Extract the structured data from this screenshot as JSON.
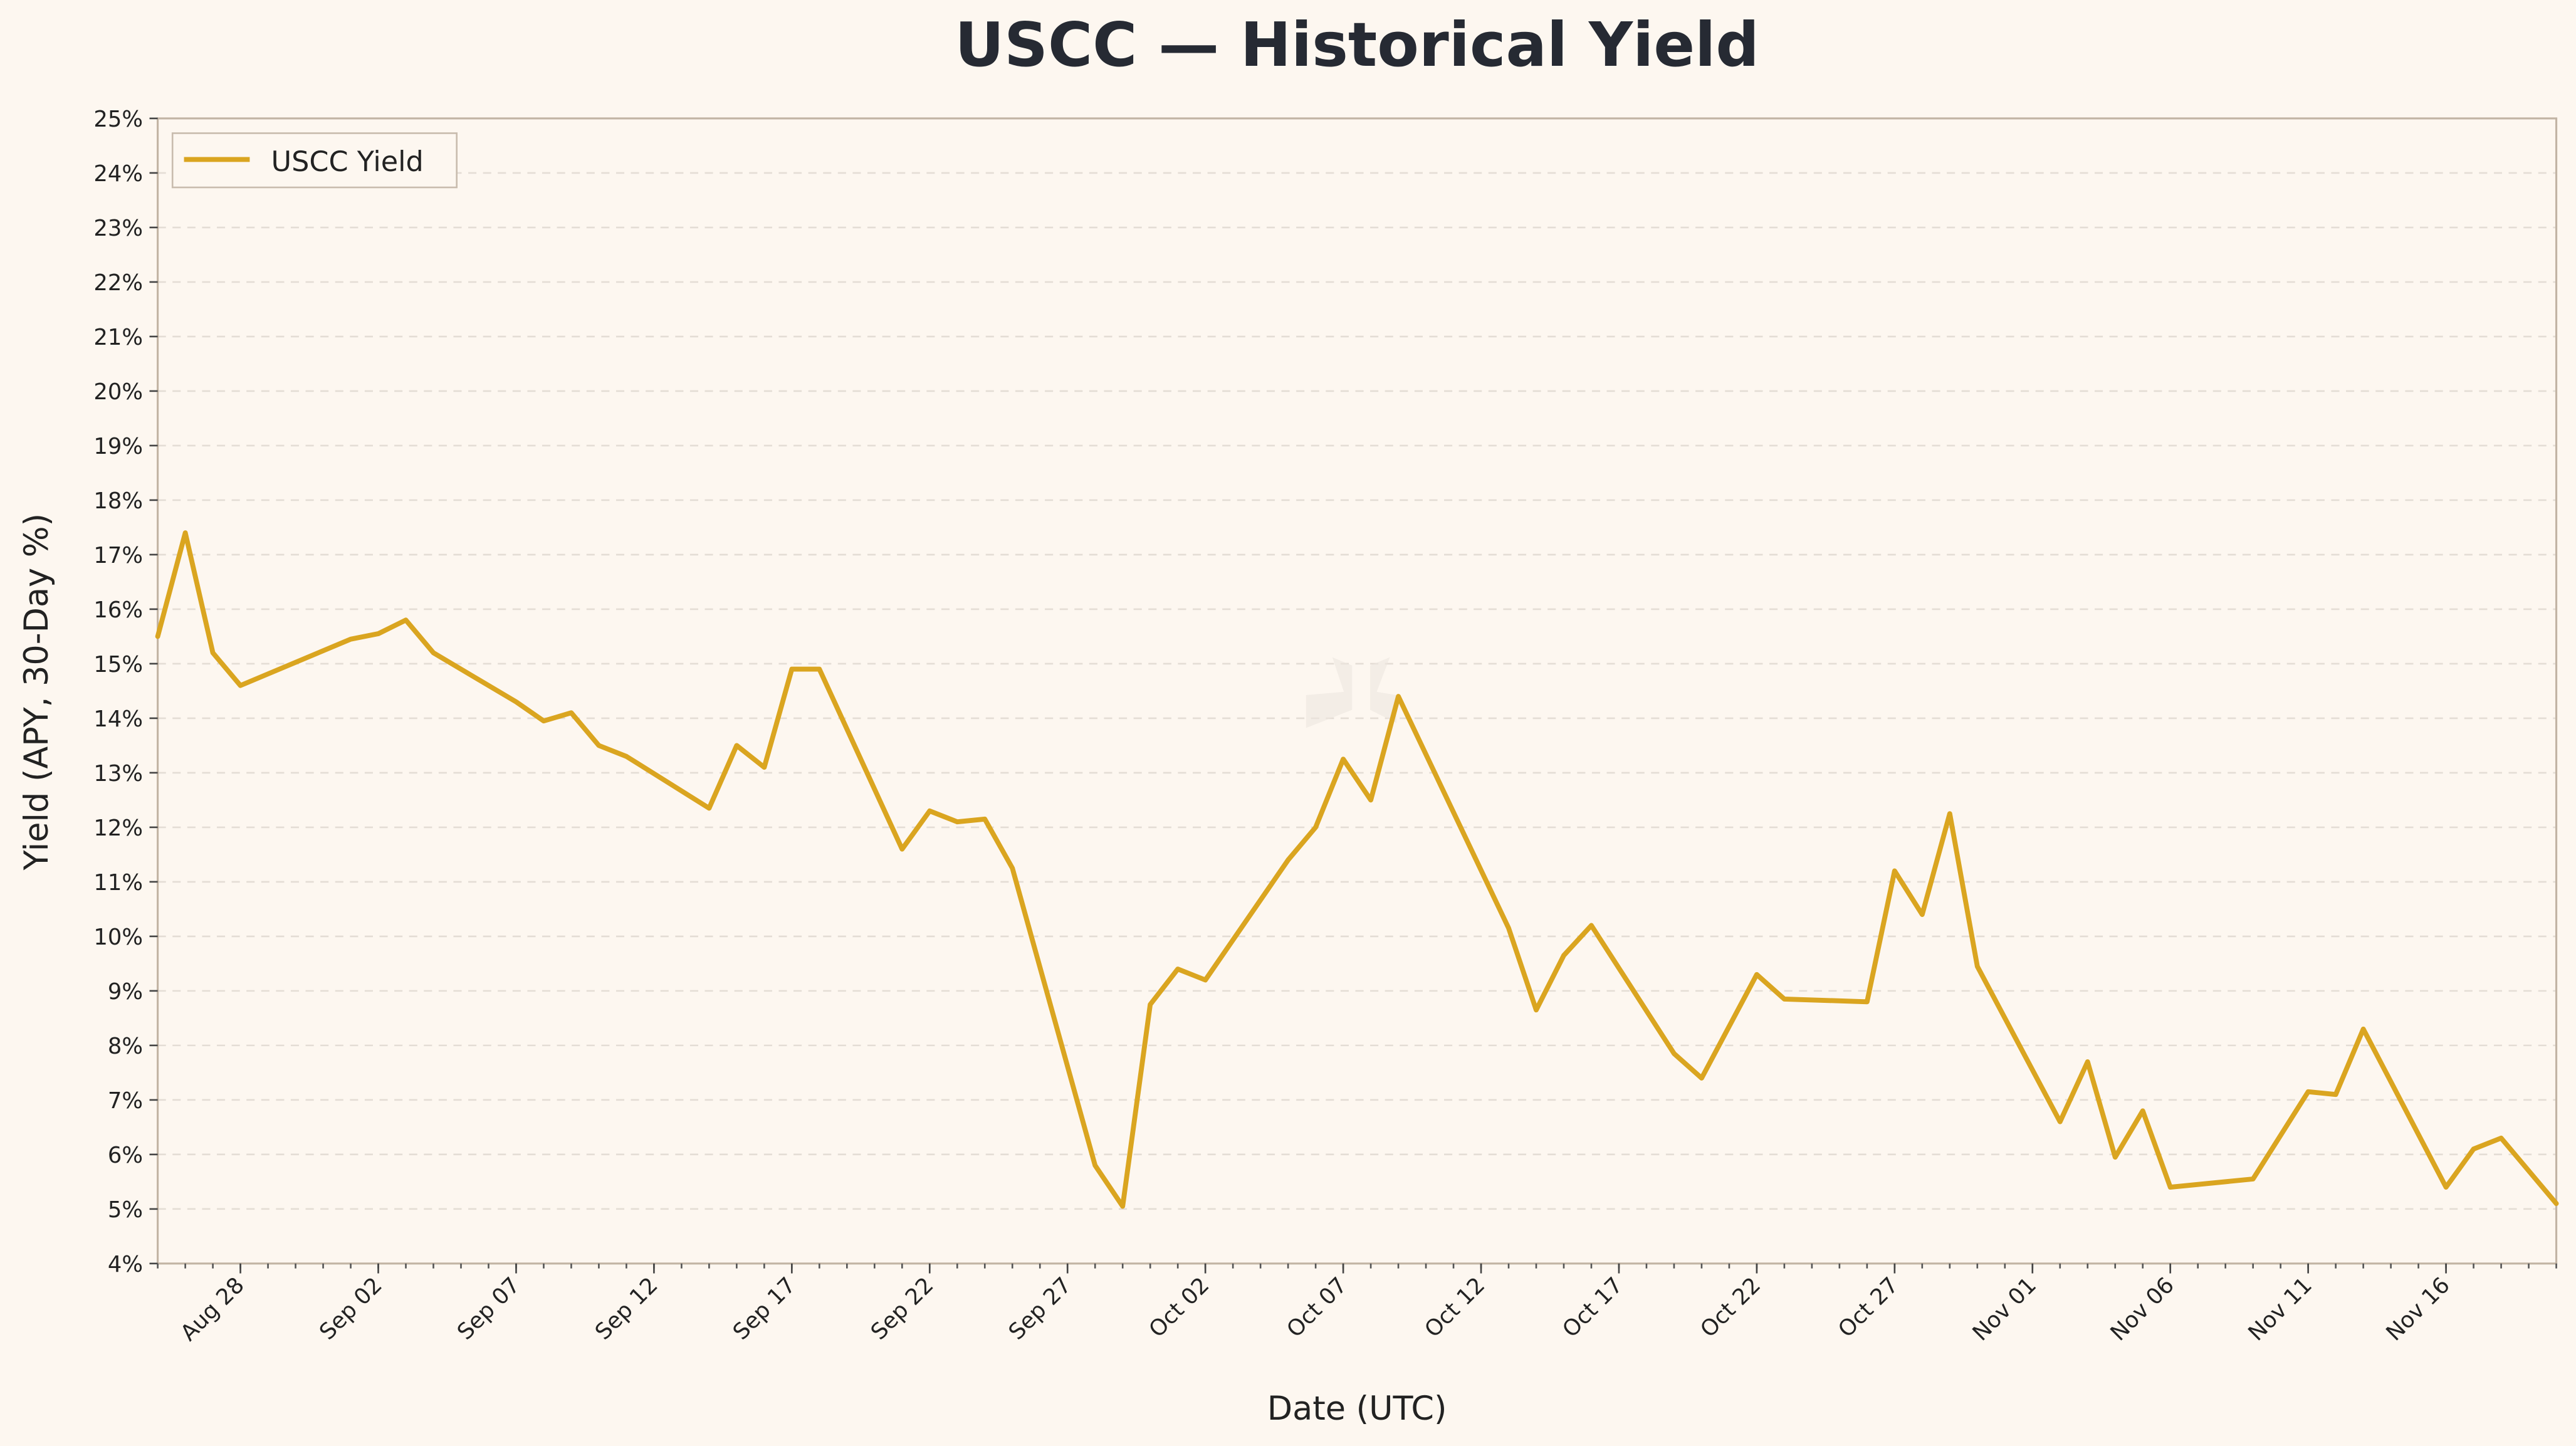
{
  "chart_data": {
    "type": "line",
    "title": "USCC — Historical Yield",
    "xlabel": "Date (UTC)",
    "ylabel": "Yield (APY, 30-Day %)",
    "ylim": [
      4,
      25
    ],
    "yticks": [
      "4%",
      "5%",
      "6%",
      "7%",
      "8%",
      "9%",
      "10%",
      "11%",
      "12%",
      "13%",
      "14%",
      "15%",
      "16%",
      "17%",
      "18%",
      "19%",
      "20%",
      "21%",
      "22%",
      "23%",
      "24%",
      "25%"
    ],
    "xlim": [
      "08-25",
      "11-20"
    ],
    "xticks": [
      "Aug 28",
      "Sep 02",
      "Sep 07",
      "Sep 12",
      "Sep 17",
      "Sep 22",
      "Sep 27",
      "Oct 02",
      "Oct 07",
      "Oct 12",
      "Oct 17",
      "Oct 22",
      "Oct 27",
      "Nov 01",
      "Nov 06",
      "Nov 11",
      "Nov 16"
    ],
    "grid": "horizontal dashed",
    "legend": {
      "placement": "top-left",
      "entries": [
        "USCC Yield"
      ]
    },
    "series": [
      {
        "name": "USCC Yield",
        "color": "#daa520",
        "x": [
          "08-25",
          "08-26",
          "08-27",
          "08-28",
          "09-01",
          "09-02",
          "09-03",
          "09-04",
          "09-07",
          "09-08",
          "09-09",
          "09-10",
          "09-11",
          "09-14",
          "09-15",
          "09-16",
          "09-17",
          "09-18",
          "09-21",
          "09-22",
          "09-23",
          "09-24",
          "09-25",
          "09-28",
          "09-29",
          "09-30",
          "10-01",
          "10-02",
          "10-05",
          "10-06",
          "10-07",
          "10-08",
          "10-09",
          "10-13",
          "10-14",
          "10-15",
          "10-16",
          "10-19",
          "10-20",
          "10-22",
          "10-23",
          "10-26",
          "10-27",
          "10-28",
          "10-29",
          "10-30",
          "11-02",
          "11-03",
          "11-04",
          "11-05",
          "11-06",
          "11-09",
          "11-11",
          "11-12",
          "11-13",
          "11-16",
          "11-17",
          "11-18",
          "11-20"
        ],
        "values": [
          15.5,
          17.4,
          15.2,
          14.6,
          15.45,
          15.55,
          15.8,
          15.2,
          14.3,
          13.95,
          14.1,
          13.5,
          13.3,
          12.35,
          13.5,
          13.1,
          14.9,
          14.9,
          11.6,
          12.3,
          12.1,
          12.15,
          11.25,
          5.8,
          5.05,
          8.75,
          9.4,
          9.2,
          11.4,
          12.0,
          13.25,
          12.5,
          14.4,
          10.15,
          8.65,
          9.65,
          10.2,
          7.85,
          7.4,
          9.3,
          8.85,
          8.8,
          11.2,
          10.4,
          12.25,
          9.45,
          6.6,
          7.7,
          5.95,
          6.8,
          5.4,
          5.55,
          7.15,
          7.1,
          8.3,
          5.4,
          6.1,
          6.3,
          5.1
        ]
      }
    ]
  }
}
